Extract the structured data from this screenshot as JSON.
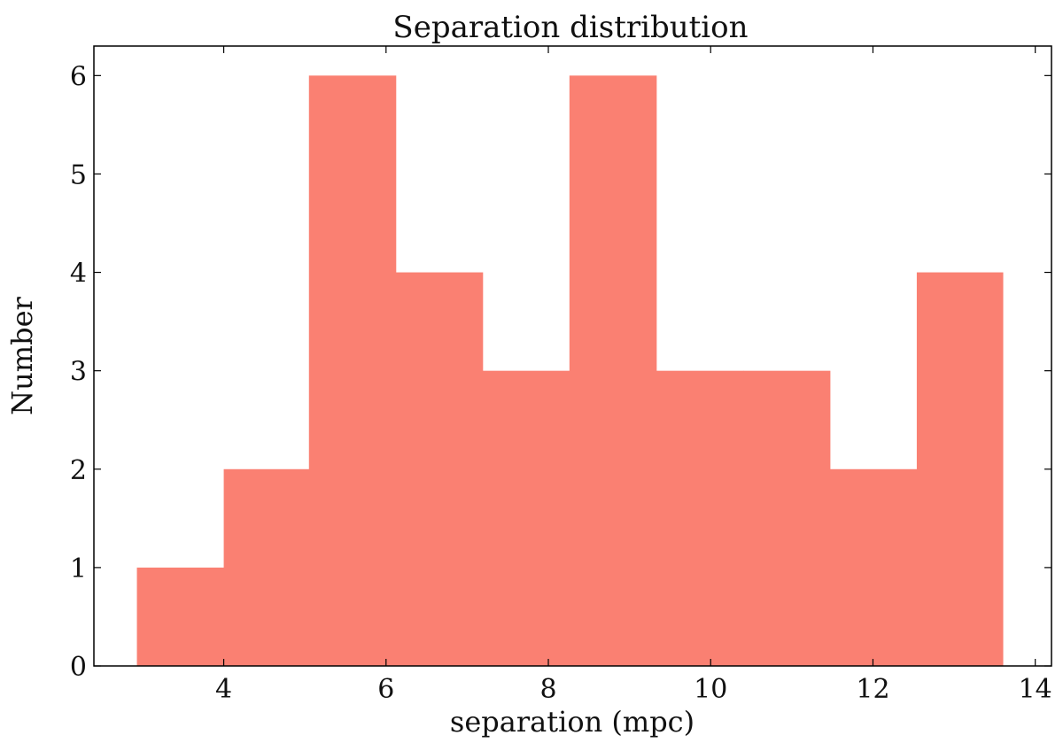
{
  "chart_data": {
    "type": "bar",
    "title": "Separation distribution",
    "xlabel": "separation (mpc)",
    "ylabel": "Number",
    "bin_edges": [
      2.93,
      4.0,
      5.05,
      6.12,
      7.19,
      8.26,
      9.33,
      10.4,
      11.47,
      12.54,
      13.6
    ],
    "values": [
      1,
      2,
      6,
      4,
      3,
      6,
      3,
      3,
      2,
      4
    ],
    "xlim": [
      2.4,
      14.2
    ],
    "ylim": [
      0,
      6.3
    ],
    "xticks": [
      4,
      6,
      8,
      10,
      12,
      14
    ],
    "yticks": [
      0,
      1,
      2,
      3,
      4,
      5,
      6
    ],
    "grid": false,
    "bar_color": "#fa8072"
  }
}
